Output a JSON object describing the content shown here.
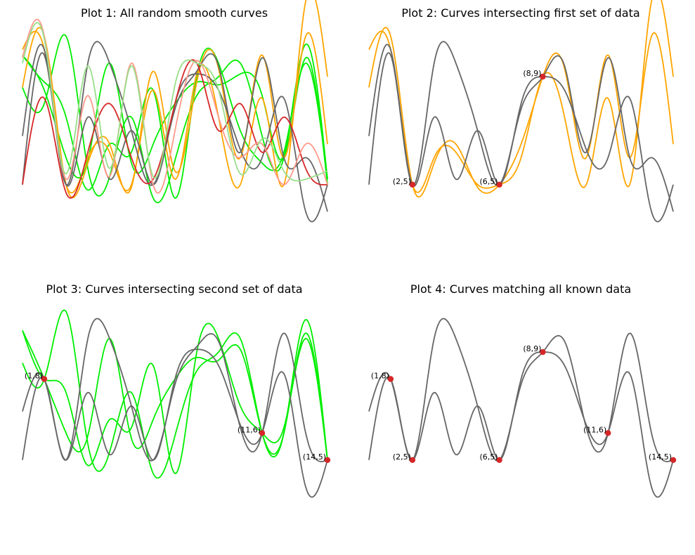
{
  "figure": {
    "panels": [
      {
        "title": "Plot 1: All random smooth curves"
      },
      {
        "title": "Plot 2: Curves intersecting first set of data"
      },
      {
        "title": "Plot 3: Curves intersecting second set of data"
      },
      {
        "title": "Plot 4: Curves matching all known data"
      }
    ]
  },
  "colors": {
    "green": "#00ee00",
    "orange": "#ffa500",
    "gray": "#666666",
    "red": "#d62728",
    "salmon": "#ff9a8a",
    "lightgreen": "#98df8a",
    "point": "#d62728"
  },
  "chart_data": [
    {
      "type": "line",
      "title": "Plot 1: All random smooth curves",
      "axes": "off",
      "xlim": [
        0,
        14
      ],
      "ylim": [
        2.0,
        10.8
      ],
      "series": [
        {
          "color": "green",
          "x": [
            0,
            1,
            2,
            3,
            4,
            5,
            6,
            7,
            8,
            9,
            10,
            11,
            12,
            13,
            14
          ],
          "y": [
            9.8,
            8.5,
            6.0,
            5.9,
            9.5,
            5.8,
            6.5,
            8.0,
            8.8,
            8.7,
            9.1,
            8.3,
            6.0,
            9.7,
            5.0
          ]
        },
        {
          "color": "green",
          "x": [
            0,
            1,
            2,
            3,
            4,
            5,
            6,
            7,
            8,
            9,
            10,
            11,
            12,
            13,
            14
          ],
          "y": [
            8.6,
            8.0,
            10.5,
            5.6,
            5.3,
            7.5,
            4.5,
            5.9,
            8.3,
            9.0,
            9.5,
            6.8,
            6.0,
            10.2,
            5.2
          ]
        },
        {
          "color": "green",
          "x": [
            0,
            1,
            2,
            3,
            4,
            5,
            6,
            7,
            8,
            9,
            10,
            11,
            12,
            13,
            14
          ],
          "y": [
            9.8,
            8.8,
            7.5,
            4.8,
            6.5,
            6.2,
            8.5,
            4.5,
            9.0,
            9.5,
            7.0,
            5.8,
            6.2,
            9.5,
            5.2
          ]
        },
        {
          "color": "orange",
          "x": [
            0,
            1,
            2,
            3,
            4,
            5,
            6,
            7,
            8,
            9,
            10,
            11,
            12,
            13,
            14
          ],
          "y": [
            8.6,
            10.5,
            5.0,
            5.8,
            6.5,
            4.9,
            9.2,
            5.5,
            8.8,
            9.3,
            6.0,
            9.8,
            6.0,
            10.5,
            6.5
          ]
        },
        {
          "color": "orange",
          "x": [
            0,
            1,
            2,
            3,
            4,
            5,
            6,
            7,
            8,
            9,
            10,
            11,
            12,
            13,
            14
          ],
          "y": [
            10.0,
            10.0,
            5.0,
            6.0,
            6.2,
            5.0,
            8.5,
            5.2,
            9.1,
            7.5,
            5.0,
            8.2,
            5.0,
            11.8,
            9.0
          ]
        },
        {
          "color": "gray",
          "x": [
            0,
            1,
            2,
            3,
            4,
            5,
            6,
            7,
            8,
            9,
            10,
            11,
            12,
            13,
            14
          ],
          "y": [
            6.8,
            10.0,
            5.0,
            7.5,
            5.2,
            7.0,
            5.0,
            8.0,
            9.1,
            8.5,
            6.3,
            6.0,
            8.2,
            4.0,
            5.0
          ]
        },
        {
          "color": "gray",
          "x": [
            0,
            1,
            2,
            3,
            4,
            5,
            6,
            7,
            8,
            9,
            10,
            11,
            12,
            13,
            14
          ],
          "y": [
            5.0,
            9.8,
            5.0,
            9.5,
            9.5,
            7.0,
            5.0,
            7.8,
            9.2,
            9.4,
            6.2,
            9.7,
            6.0,
            6.0,
            4.0
          ]
        },
        {
          "color": "red",
          "x": [
            0,
            1,
            2,
            3,
            4,
            5,
            6,
            7,
            8,
            9,
            10,
            11,
            12,
            13,
            14
          ],
          "y": [
            5.0,
            8.2,
            4.7,
            6.2,
            8.0,
            6.0,
            5.2,
            8.0,
            9.5,
            7.0,
            8.0,
            6.2,
            7.5,
            5.6,
            5.0
          ]
        },
        {
          "color": "salmon",
          "x": [
            0,
            1,
            2,
            3,
            4,
            5,
            6,
            7,
            8,
            9,
            10,
            11,
            12,
            13,
            14
          ],
          "y": [
            9.7,
            10.5,
            5.2,
            8.3,
            5.3,
            9.5,
            5.0,
            7.0,
            9.6,
            7.5,
            6.0,
            6.5,
            5.0,
            6.5,
            5.0
          ]
        },
        {
          "color": "lightgreen",
          "x": [
            0,
            1,
            2,
            3,
            4,
            5,
            6,
            7,
            8,
            9,
            10,
            11,
            12,
            13,
            14
          ],
          "y": [
            9.5,
            10.4,
            5.4,
            9.4,
            5.6,
            9.4,
            5.3,
            8.7,
            9.5,
            8.5,
            5.4,
            6.7,
            5.5,
            5.2,
            5.5
          ]
        }
      ],
      "points": []
    },
    {
      "type": "line",
      "title": "Plot 2: Curves intersecting first set of data",
      "axes": "off",
      "xlim": [
        0,
        14
      ],
      "ylim": [
        2.0,
        10.8
      ],
      "series": [
        {
          "color": "orange",
          "x": [
            0,
            1,
            2,
            3,
            4,
            5,
            6,
            7,
            8,
            9,
            10,
            11,
            12,
            13,
            14
          ],
          "y": [
            8.6,
            10.5,
            5.0,
            5.8,
            6.5,
            4.9,
            5.0,
            6.5,
            9.0,
            9.3,
            6.0,
            9.8,
            6.0,
            10.5,
            6.5
          ]
        },
        {
          "color": "orange",
          "x": [
            0,
            1,
            2,
            3,
            4,
            5,
            6,
            7,
            8,
            9,
            10,
            11,
            12,
            13,
            14
          ],
          "y": [
            10.0,
            10.0,
            5.0,
            6.0,
            6.2,
            5.0,
            5.0,
            6.0,
            9.0,
            7.5,
            5.0,
            8.2,
            5.0,
            11.8,
            9.0
          ]
        },
        {
          "color": "gray",
          "x": [
            0,
            1,
            2,
            3,
            4,
            5,
            6,
            7,
            8,
            9,
            10,
            11,
            12,
            13,
            14
          ],
          "y": [
            6.8,
            10.0,
            5.0,
            7.5,
            5.2,
            7.0,
            5.0,
            8.0,
            9.0,
            8.5,
            6.3,
            6.0,
            8.2,
            4.0,
            5.0
          ]
        },
        {
          "color": "gray",
          "x": [
            0,
            1,
            2,
            3,
            4,
            5,
            6,
            7,
            8,
            9,
            10,
            11,
            12,
            13,
            14
          ],
          "y": [
            5.0,
            9.8,
            5.0,
            9.5,
            9.5,
            7.0,
            5.0,
            7.8,
            9.0,
            9.4,
            6.2,
            9.7,
            6.0,
            6.0,
            4.0
          ]
        }
      ],
      "points": [
        {
          "x": 2,
          "y": 5,
          "label": "(2,5)"
        },
        {
          "x": 6,
          "y": 5,
          "label": "(6,5)"
        },
        {
          "x": 8,
          "y": 9,
          "label": "(8,9)"
        }
      ]
    },
    {
      "type": "line",
      "title": "Plot 3: Curves intersecting second set of data",
      "axes": "off",
      "xlim": [
        0,
        14
      ],
      "ylim": [
        2.0,
        10.8
      ],
      "series": [
        {
          "color": "green",
          "x": [
            0,
            1,
            2,
            3,
            4,
            5,
            6,
            7,
            8,
            9,
            10,
            11,
            12,
            13,
            14
          ],
          "y": [
            9.8,
            8.0,
            6.0,
            5.9,
            9.5,
            5.8,
            6.5,
            8.0,
            8.8,
            8.7,
            9.1,
            6.0,
            6.0,
            9.7,
            5.0
          ]
        },
        {
          "color": "green",
          "x": [
            0,
            1,
            2,
            3,
            4,
            5,
            6,
            7,
            8,
            9,
            10,
            11,
            12,
            13,
            14
          ],
          "y": [
            8.6,
            8.0,
            10.5,
            5.6,
            5.3,
            7.5,
            4.5,
            5.9,
            8.3,
            9.0,
            9.5,
            6.0,
            6.0,
            10.2,
            5.0
          ]
        },
        {
          "color": "green",
          "x": [
            0,
            1,
            2,
            3,
            4,
            5,
            6,
            7,
            8,
            9,
            10,
            11,
            12,
            13,
            14
          ],
          "y": [
            9.8,
            8.0,
            7.5,
            4.8,
            6.5,
            6.2,
            8.5,
            4.5,
            9.0,
            9.5,
            7.0,
            6.0,
            6.2,
            9.5,
            5.0
          ]
        },
        {
          "color": "gray",
          "x": [
            0,
            1,
            2,
            3,
            4,
            5,
            6,
            7,
            8,
            9,
            10,
            11,
            12,
            13,
            14
          ],
          "y": [
            6.8,
            8.0,
            5.0,
            7.5,
            5.2,
            7.0,
            5.0,
            8.0,
            9.1,
            8.5,
            6.3,
            6.0,
            8.2,
            4.0,
            5.0
          ]
        },
        {
          "color": "gray",
          "x": [
            0,
            1,
            2,
            3,
            4,
            5,
            6,
            7,
            8,
            9,
            10,
            11,
            12,
            13,
            14
          ],
          "y": [
            5.0,
            8.0,
            5.0,
            9.5,
            9.5,
            7.0,
            5.0,
            7.8,
            9.2,
            9.4,
            6.2,
            6.0,
            9.7,
            6.0,
            5.0
          ]
        }
      ],
      "points": [
        {
          "x": 1,
          "y": 8,
          "label": "(1,8)"
        },
        {
          "x": 11,
          "y": 6,
          "label": "(11,6)"
        },
        {
          "x": 14,
          "y": 5,
          "label": "(14,5)"
        }
      ]
    },
    {
      "type": "line",
      "title": "Plot 4: Curves matching all known data",
      "axes": "off",
      "xlim": [
        0,
        14
      ],
      "ylim": [
        2.0,
        10.8
      ],
      "series": [
        {
          "color": "gray",
          "x": [
            0,
            1,
            2,
            3,
            4,
            5,
            6,
            7,
            8,
            9,
            10,
            11,
            12,
            13,
            14
          ],
          "y": [
            6.8,
            8.0,
            5.0,
            7.5,
            5.2,
            7.0,
            5.0,
            8.0,
            9.0,
            8.5,
            6.3,
            6.0,
            8.2,
            4.0,
            5.0
          ]
        },
        {
          "color": "gray",
          "x": [
            0,
            1,
            2,
            3,
            4,
            5,
            6,
            7,
            8,
            9,
            10,
            11,
            12,
            13,
            14
          ],
          "y": [
            5.0,
            8.0,
            5.0,
            9.5,
            9.5,
            7.0,
            5.0,
            7.8,
            9.0,
            9.4,
            6.2,
            6.0,
            9.7,
            6.0,
            5.0
          ]
        }
      ],
      "points": [
        {
          "x": 1,
          "y": 8,
          "label": "(1,8)"
        },
        {
          "x": 2,
          "y": 5,
          "label": "(2,5)"
        },
        {
          "x": 6,
          "y": 5,
          "label": "(6,5)"
        },
        {
          "x": 8,
          "y": 9,
          "label": "(8,9)"
        },
        {
          "x": 11,
          "y": 6,
          "label": "(11,6)"
        },
        {
          "x": 14,
          "y": 5,
          "label": "(14,5)"
        }
      ]
    }
  ]
}
